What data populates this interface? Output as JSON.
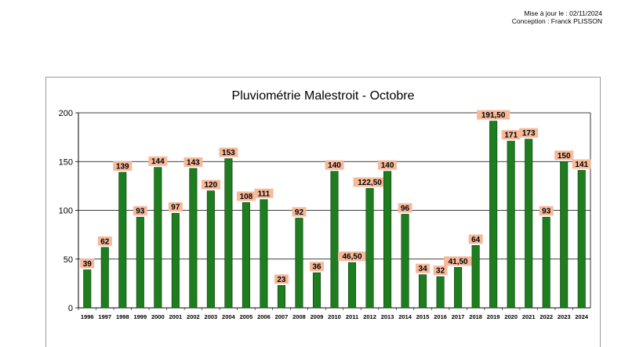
{
  "header": {
    "update_line": "Mise à jour le : 02/11/2024",
    "author_line": "Conception : Franck PLISSON"
  },
  "colors": {
    "bar": "#1e7d1e",
    "bar_stroke": "#0d3d0d",
    "label_bg": "#f6b99a",
    "grid": "#000000"
  },
  "chart_data": {
    "type": "bar",
    "title": "Pluviométrie Malestroit - Octobre",
    "xlabel": "",
    "ylabel": "",
    "ylim": [
      0,
      200
    ],
    "yticks": [
      0,
      50,
      100,
      150,
      200
    ],
    "grid": true,
    "categories": [
      "1996",
      "1997",
      "1998",
      "1999",
      "2000",
      "2001",
      "2002",
      "2003",
      "2004",
      "2005",
      "2006",
      "2007",
      "2008",
      "2009",
      "2010",
      "2011",
      "2012",
      "2013",
      "2014",
      "2015",
      "2016",
      "2017",
      "2018",
      "2019",
      "2020",
      "2021",
      "2022",
      "2023",
      "2024"
    ],
    "values": [
      39,
      62,
      139,
      93,
      144,
      97,
      143,
      120,
      153,
      108,
      111,
      23,
      92,
      36,
      140,
      46.5,
      122.5,
      140,
      96,
      34,
      32,
      41.5,
      64,
      191.5,
      171,
      173,
      93,
      150,
      141
    ],
    "data_labels": [
      "39",
      "62",
      "139",
      "93",
      "144",
      "97",
      "143",
      "120",
      "153",
      "108",
      "111",
      "23",
      "92",
      "36",
      "140",
      "46,50",
      "122,50",
      "140",
      "96",
      "34",
      "32",
      "41,50",
      "64",
      "191,50",
      "171",
      "173",
      "93",
      "150",
      "141"
    ]
  }
}
